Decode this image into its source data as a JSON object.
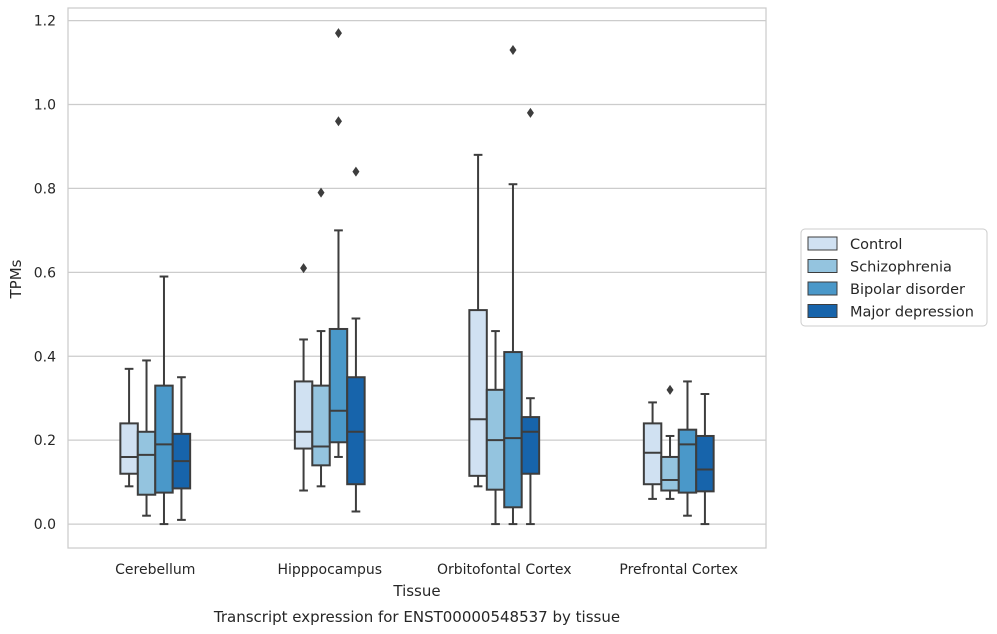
{
  "caption": "Transcript expression for ENST00000548537 by tissue",
  "chart_data": {
    "type": "boxplot",
    "xlabel": "Tissue",
    "ylabel": "TPMs",
    "ylim": [
      -0.057,
      1.23
    ],
    "yticks": [
      0.0,
      0.2,
      0.4,
      0.6,
      0.8,
      1.0,
      1.2
    ],
    "ytick_labels": [
      "0.0",
      "0.2",
      "0.4",
      "0.6",
      "0.8",
      "1.0",
      "1.2"
    ],
    "grid": "horizontal",
    "legend_position": "right",
    "categories": [
      "Cerebellum",
      "Hipppocampus",
      "Orbitofontal Cortex",
      "Prefrontal Cortex"
    ],
    "series": [
      {
        "name": "Control",
        "color": "#d0e1f2",
        "boxes": [
          {
            "whislo": 0.09,
            "q1": 0.12,
            "med": 0.16,
            "q3": 0.24,
            "whishi": 0.37,
            "fliers": []
          },
          {
            "whislo": 0.08,
            "q1": 0.18,
            "med": 0.22,
            "q3": 0.34,
            "whishi": 0.44,
            "fliers": [
              0.61
            ]
          },
          {
            "whislo": 0.09,
            "q1": 0.115,
            "med": 0.25,
            "q3": 0.51,
            "whishi": 0.88,
            "fliers": []
          },
          {
            "whislo": 0.06,
            "q1": 0.095,
            "med": 0.17,
            "q3": 0.24,
            "whishi": 0.29,
            "fliers": []
          }
        ]
      },
      {
        "name": "Schizophrenia",
        "color": "#94c4df",
        "boxes": [
          {
            "whislo": 0.02,
            "q1": 0.07,
            "med": 0.165,
            "q3": 0.22,
            "whishi": 0.39,
            "fliers": []
          },
          {
            "whislo": 0.09,
            "q1": 0.14,
            "med": 0.185,
            "q3": 0.33,
            "whishi": 0.46,
            "fliers": [
              0.79
            ]
          },
          {
            "whislo": 0.0,
            "q1": 0.082,
            "med": 0.2,
            "q3": 0.32,
            "whishi": 0.46,
            "fliers": []
          },
          {
            "whislo": 0.06,
            "q1": 0.08,
            "med": 0.105,
            "q3": 0.16,
            "whishi": 0.21,
            "fliers": [
              0.32
            ]
          }
        ]
      },
      {
        "name": "Bipolar disorder",
        "color": "#4a98c9",
        "boxes": [
          {
            "whislo": 0.0,
            "q1": 0.075,
            "med": 0.19,
            "q3": 0.33,
            "whishi": 0.59,
            "fliers": []
          },
          {
            "whislo": 0.16,
            "q1": 0.195,
            "med": 0.27,
            "q3": 0.465,
            "whishi": 0.7,
            "fliers": [
              0.96,
              1.17
            ]
          },
          {
            "whislo": 0.0,
            "q1": 0.04,
            "med": 0.205,
            "q3": 0.41,
            "whishi": 0.81,
            "fliers": [
              1.13
            ]
          },
          {
            "whislo": 0.02,
            "q1": 0.075,
            "med": 0.19,
            "q3": 0.225,
            "whishi": 0.34,
            "fliers": []
          }
        ]
      },
      {
        "name": "Major depression",
        "color": "#1764ab",
        "boxes": [
          {
            "whislo": 0.01,
            "q1": 0.085,
            "med": 0.15,
            "q3": 0.215,
            "whishi": 0.35,
            "fliers": []
          },
          {
            "whislo": 0.03,
            "q1": 0.095,
            "med": 0.22,
            "q3": 0.35,
            "whishi": 0.49,
            "fliers": [
              0.84
            ]
          },
          {
            "whislo": 0.0,
            "q1": 0.12,
            "med": 0.22,
            "q3": 0.255,
            "whishi": 0.3,
            "fliers": [
              0.98
            ]
          },
          {
            "whislo": 0.0,
            "q1": 0.078,
            "med": 0.13,
            "q3": 0.21,
            "whishi": 0.31,
            "fliers": []
          }
        ]
      }
    ]
  }
}
